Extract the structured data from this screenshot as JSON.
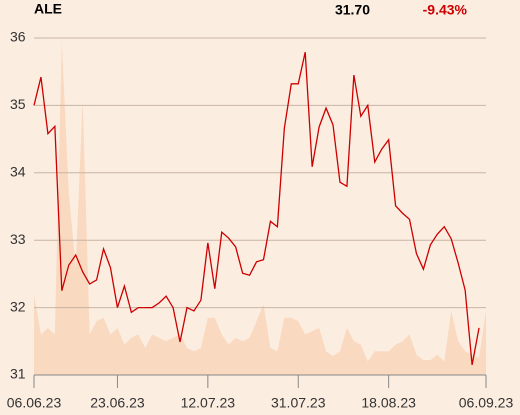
{
  "chart_data": {
    "type": "line",
    "title": "ALE",
    "price": "31.70",
    "change": "-9.43%",
    "xlim": [
      0,
      65
    ],
    "xticks": [
      {
        "value": 0,
        "label": "06.06.23"
      },
      {
        "value": 12,
        "label": "23.06.23"
      },
      {
        "value": 25,
        "label": "12.07.23"
      },
      {
        "value": 38,
        "label": "31.07.23"
      },
      {
        "value": 51,
        "label": "18.08.23"
      },
      {
        "value": 65,
        "label": "06.09.23"
      }
    ],
    "ylim": [
      31,
      36
    ],
    "yticks": [
      31,
      32,
      33,
      34,
      35,
      36
    ],
    "grid": true,
    "series": [
      {
        "style": "area",
        "color": "#f9d9c0",
        "values": [
          32.19,
          31.6,
          31.7,
          31.6,
          35.95,
          33.7,
          32.6,
          35.1,
          31.6,
          31.8,
          31.85,
          31.6,
          31.7,
          31.45,
          31.55,
          31.6,
          31.4,
          31.6,
          31.55,
          31.5,
          31.55,
          31.6,
          31.4,
          31.35,
          31.4,
          31.85,
          31.85,
          31.6,
          31.45,
          31.55,
          31.5,
          31.55,
          31.8,
          32.05,
          31.4,
          31.35,
          31.85,
          31.85,
          31.8,
          31.6,
          31.65,
          31.7,
          31.35,
          31.28,
          31.35,
          31.7,
          31.5,
          31.45,
          31.2,
          31.35,
          31.35,
          31.35,
          31.45,
          31.5,
          31.6,
          31.3,
          31.22,
          31.22,
          31.3,
          31.2,
          31.95,
          31.5,
          31.35,
          31.3,
          31.25,
          31.95
        ]
      },
      {
        "style": "line",
        "color": "#cc0000",
        "values": [
          35.0,
          35.42,
          34.58,
          34.69,
          32.25,
          32.63,
          32.78,
          32.53,
          32.35,
          32.41,
          32.87,
          32.59,
          32.0,
          32.32,
          31.93,
          32.0,
          32.0,
          32.0,
          32.07,
          32.17,
          32.0,
          31.49,
          32.0,
          31.95,
          32.11,
          32.96,
          32.28,
          33.12,
          33.03,
          32.9,
          32.51,
          32.48,
          32.68,
          32.71,
          33.28,
          33.2,
          34.66,
          35.32,
          35.32,
          35.79,
          34.09,
          34.68,
          34.96,
          34.71,
          33.86,
          33.8,
          35.45,
          34.84,
          35.0,
          34.16,
          34.35,
          34.49,
          33.51,
          33.4,
          33.31,
          32.8,
          32.57,
          32.93,
          33.09,
          33.2,
          33.02,
          32.66,
          32.26,
          31.15,
          31.7
        ]
      }
    ]
  }
}
